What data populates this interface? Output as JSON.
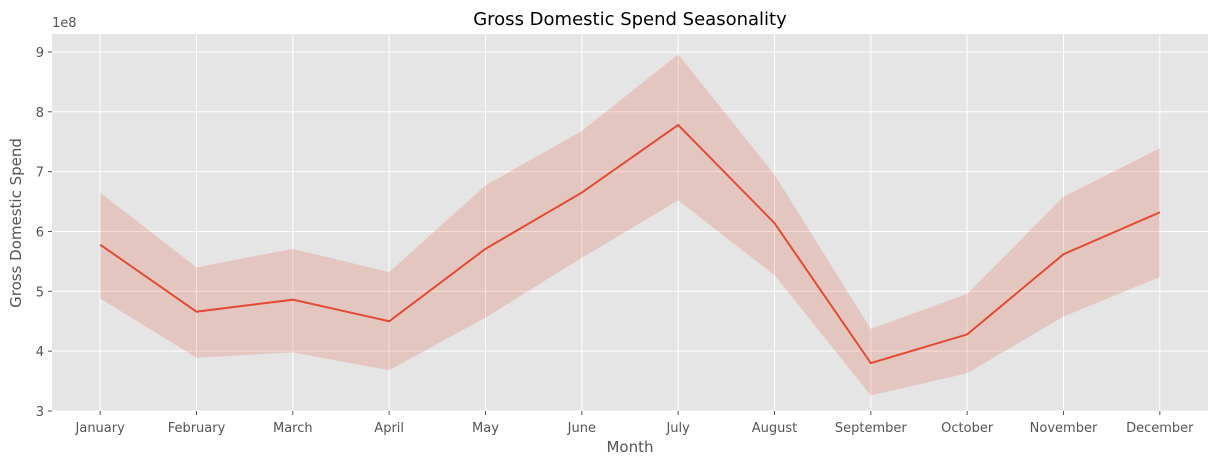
{
  "chart_data": {
    "type": "line",
    "title": "Gross Domestic Spend Seasonality",
    "xlabel": "Month",
    "ylabel": "Gross Domestic Spend",
    "y_offset_label": "1e8",
    "categories": [
      "January",
      "February",
      "March",
      "April",
      "May",
      "June",
      "July",
      "August",
      "September",
      "October",
      "November",
      "December"
    ],
    "y_ticks": [
      3,
      4,
      5,
      6,
      7,
      8,
      9
    ],
    "ylim": [
      3,
      9.3
    ],
    "series": [
      {
        "values": [
          5.78,
          4.66,
          4.86,
          4.5,
          5.71,
          6.65,
          7.78,
          6.14,
          3.8,
          4.28,
          5.62,
          6.32
        ],
        "ci_lower": [
          4.88,
          3.89,
          3.98,
          3.68,
          4.56,
          5.56,
          6.52,
          5.27,
          3.26,
          3.63,
          4.58,
          5.24
        ],
        "ci_upper": [
          6.65,
          5.4,
          5.71,
          5.32,
          6.77,
          7.68,
          8.96,
          6.95,
          4.37,
          4.96,
          6.58,
          7.39
        ]
      }
    ],
    "grid": true,
    "legend": "none",
    "colors": {
      "line": "#e24a33",
      "band": "#e24a33",
      "plot_background": "#e5e5e5",
      "grid": "#ffffff",
      "text": "#555555"
    }
  }
}
